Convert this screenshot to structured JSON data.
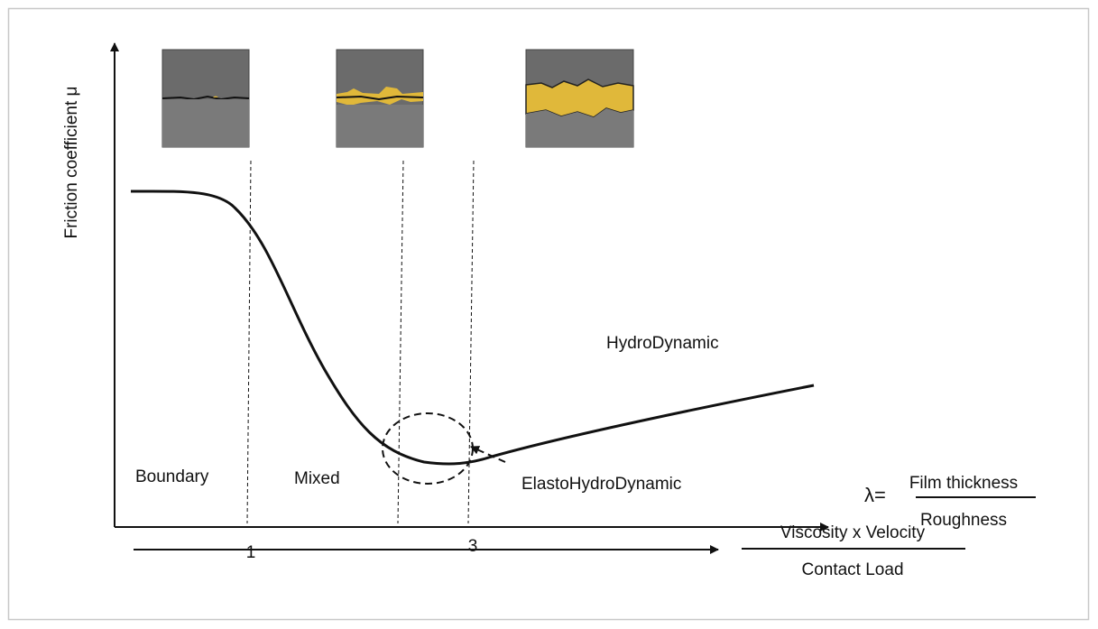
{
  "diagram": {
    "y_axis_label": "Friction coefficient μ",
    "regions": [
      "Boundary",
      "Mixed",
      "ElastoHydroDynamic",
      "HydroDynamic"
    ],
    "x_tick_labels": [
      "1",
      "3"
    ],
    "lambda": {
      "symbol": "λ=",
      "numerator": "Film thickness",
      "denominator": "Roughness"
    },
    "bottom_fraction": {
      "numerator": "Viscosity x Velocity",
      "denominator": "Contact Load"
    }
  }
}
